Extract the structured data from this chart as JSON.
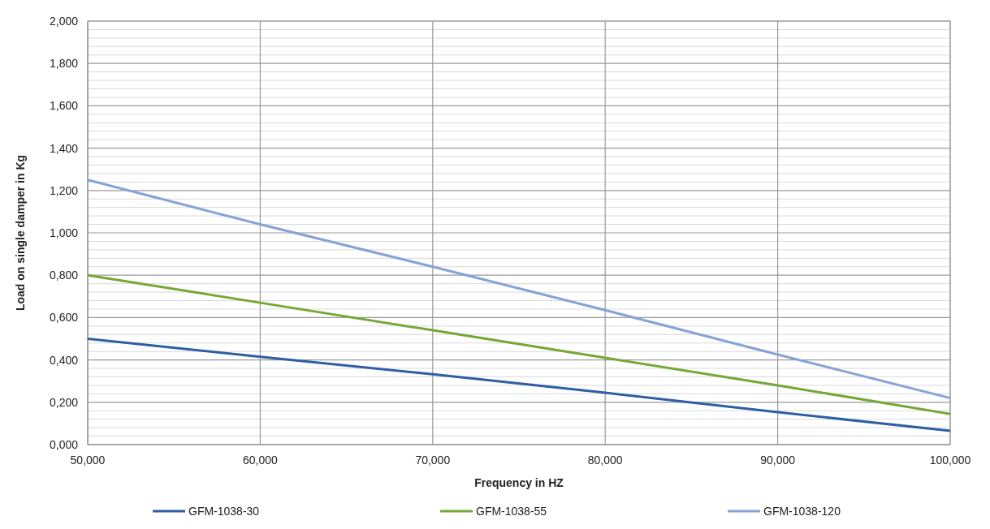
{
  "chart_data": {
    "type": "line",
    "xlabel": "Frequency in HZ",
    "ylabel": "Load on single damper  in Kg",
    "x": [
      50,
      60,
      70,
      80,
      90,
      100
    ],
    "series": [
      {
        "name": "GFM-1038-30",
        "color": "#2e5fa3",
        "values": [
          0.5,
          0.415,
          0.332,
          0.245,
          0.153,
          0.065
        ]
      },
      {
        "name": "GFM-1038-55",
        "color": "#77a737",
        "values": [
          0.8,
          0.67,
          0.54,
          0.41,
          0.28,
          0.145
        ]
      },
      {
        "name": "GFM-1038-120",
        "color": "#86a3d6",
        "values": [
          1.25,
          1.04,
          0.84,
          0.635,
          0.425,
          0.22
        ]
      }
    ],
    "xlim": [
      50,
      100
    ],
    "xticks": [
      {
        "value": 50,
        "label": "50,000"
      },
      {
        "value": 60,
        "label": "60,000"
      },
      {
        "value": 70,
        "label": "70,000"
      },
      {
        "value": 80,
        "label": "80,000"
      },
      {
        "value": 90,
        "label": "90,000"
      },
      {
        "value": 100,
        "label": "100,000"
      }
    ],
    "ylim": [
      0,
      2
    ],
    "yticks": [
      {
        "value": 0,
        "label": "0,000"
      },
      {
        "value": 0.04,
        "label": null
      },
      {
        "value": 0.08,
        "label": null
      },
      {
        "value": 0.12,
        "label": null
      },
      {
        "value": 0.16,
        "label": null
      },
      {
        "value": 0.2,
        "label": "0,200"
      },
      {
        "value": 0.24,
        "label": null
      },
      {
        "value": 0.28,
        "label": null
      },
      {
        "value": 0.32,
        "label": null
      },
      {
        "value": 0.36,
        "label": null
      },
      {
        "value": 0.4,
        "label": "0,400"
      },
      {
        "value": 0.44,
        "label": null
      },
      {
        "value": 0.48,
        "label": null
      },
      {
        "value": 0.52,
        "label": null
      },
      {
        "value": 0.56,
        "label": null
      },
      {
        "value": 0.6,
        "label": "0,600"
      },
      {
        "value": 0.64,
        "label": null
      },
      {
        "value": 0.68,
        "label": null
      },
      {
        "value": 0.72,
        "label": null
      },
      {
        "value": 0.76,
        "label": null
      },
      {
        "value": 0.8,
        "label": "0,800"
      },
      {
        "value": 0.84,
        "label": null
      },
      {
        "value": 0.88,
        "label": null
      },
      {
        "value": 0.92,
        "label": null
      },
      {
        "value": 0.96,
        "label": null
      },
      {
        "value": 1,
        "label": "1,000"
      },
      {
        "value": 1.04,
        "label": null
      },
      {
        "value": 1.08,
        "label": null
      },
      {
        "value": 1.12,
        "label": null
      },
      {
        "value": 1.16,
        "label": null
      },
      {
        "value": 1.2,
        "label": "1,200"
      },
      {
        "value": 1.24,
        "label": null
      },
      {
        "value": 1.28,
        "label": null
      },
      {
        "value": 1.32,
        "label": null
      },
      {
        "value": 1.36,
        "label": null
      },
      {
        "value": 1.4,
        "label": "1,400"
      },
      {
        "value": 1.44,
        "label": null
      },
      {
        "value": 1.48,
        "label": null
      },
      {
        "value": 1.52,
        "label": null
      },
      {
        "value": 1.56,
        "label": null
      },
      {
        "value": 1.6,
        "label": "1,600"
      },
      {
        "value": 1.64,
        "label": null
      },
      {
        "value": 1.68,
        "label": null
      },
      {
        "value": 1.72,
        "label": null
      },
      {
        "value": 1.76,
        "label": null
      },
      {
        "value": 1.8,
        "label": "1,800"
      },
      {
        "value": 1.84,
        "label": null
      },
      {
        "value": 1.88,
        "label": null
      },
      {
        "value": 1.92,
        "label": null
      },
      {
        "value": 1.96,
        "label": null
      },
      {
        "value": 2,
        "label": "2,000"
      }
    ],
    "grid": true,
    "legend": "bottom",
    "marker": "none",
    "line_style": "solid"
  }
}
